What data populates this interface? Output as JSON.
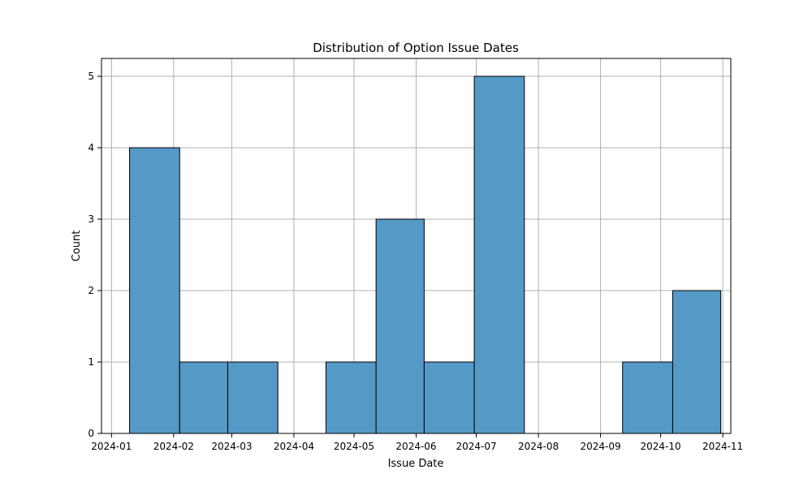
{
  "chart_data": {
    "type": "bar",
    "title": "Distribution of Option Issue Dates",
    "xlabel": "Issue Date",
    "ylabel": "Count",
    "bar_color": "#5599c7",
    "grid": true,
    "x_ticks": [
      "2024-01",
      "2024-02",
      "2024-03",
      "2024-04",
      "2024-05",
      "2024-06",
      "2024-07",
      "2024-08",
      "2024-09",
      "2024-10",
      "2024-11"
    ],
    "xlim": [
      "2023-12-27",
      "2024-11-05"
    ],
    "y_ticks": [
      0,
      1,
      2,
      3,
      4,
      5
    ],
    "ylim": [
      0,
      5.25
    ],
    "bins": [
      {
        "start": "2024-01-10",
        "end": "2024-02-04",
        "count": 4
      },
      {
        "start": "2024-02-04",
        "end": "2024-02-28",
        "count": 1
      },
      {
        "start": "2024-02-28",
        "end": "2024-03-24",
        "count": 1
      },
      {
        "start": "2024-03-24",
        "end": "2024-04-17",
        "count": 0
      },
      {
        "start": "2024-04-17",
        "end": "2024-05-12",
        "count": 1
      },
      {
        "start": "2024-05-12",
        "end": "2024-06-05",
        "count": 3
      },
      {
        "start": "2024-06-05",
        "end": "2024-06-30",
        "count": 1
      },
      {
        "start": "2024-06-30",
        "end": "2024-07-25",
        "count": 5
      },
      {
        "start": "2024-07-25",
        "end": "2024-08-18",
        "count": 0
      },
      {
        "start": "2024-08-18",
        "end": "2024-09-12",
        "count": 0
      },
      {
        "start": "2024-09-12",
        "end": "2024-10-07",
        "count": 1
      },
      {
        "start": "2024-10-07",
        "end": "2024-10-31",
        "count": 2
      }
    ]
  }
}
